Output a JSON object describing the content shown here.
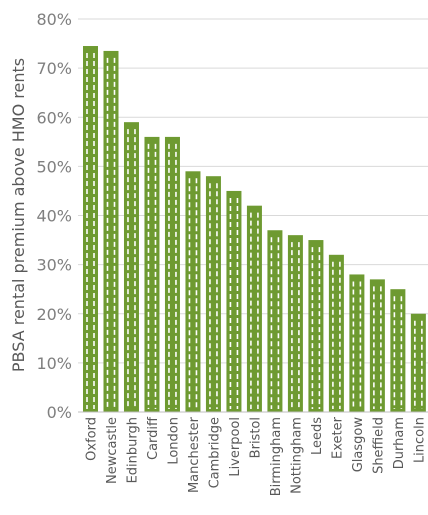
{
  "chart_data": {
    "type": "bar",
    "title": "",
    "xlabel": "",
    "ylabel": "PBSA rental premium above HMO rents",
    "ylim": [
      0,
      80
    ],
    "yticks": [
      "0%",
      "10%",
      "20%",
      "30%",
      "40%",
      "50%",
      "60%",
      "70%",
      "80%"
    ],
    "grid": true,
    "legend": "none",
    "bar_color": "#6E9A31",
    "categories": [
      "Oxford",
      "Newcastle",
      "Edinburgh",
      "Cardiff",
      "London",
      "Manchester",
      "Cambridge",
      "Liverpool",
      "Bristol",
      "Birmingham",
      "Nottingham",
      "Leeds",
      "Exeter",
      "Glasgow",
      "Sheffield",
      "Durham",
      "Lincoln"
    ],
    "values": [
      74.5,
      73.5,
      59,
      56,
      56,
      49,
      48,
      45,
      42,
      37,
      36,
      35,
      32,
      28,
      27,
      25,
      20
    ]
  }
}
